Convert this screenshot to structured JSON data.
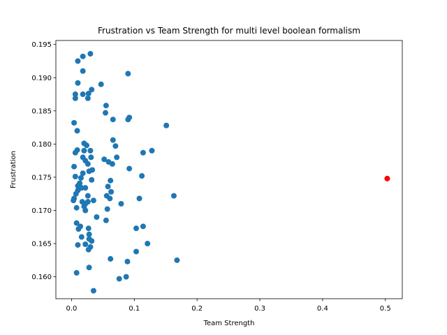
{
  "chart_data": {
    "type": "scatter",
    "title": "Frustration vs Team Strength for multi level boolean formalism",
    "xlabel": "Team Strength",
    "ylabel": "Frustration",
    "xlim": [
      -0.025,
      0.527
    ],
    "ylim": [
      0.1567,
      0.1956
    ],
    "xticks": [
      0.0,
      0.1,
      0.2,
      0.3,
      0.4,
      0.5
    ],
    "xtick_labels": [
      "0.0",
      "0.1",
      "0.2",
      "0.3",
      "0.4",
      "0.5"
    ],
    "yticks": [
      0.16,
      0.165,
      0.17,
      0.175,
      0.18,
      0.185,
      0.19,
      0.195
    ],
    "ytick_labels": [
      "0.160",
      "0.165",
      "0.170",
      "0.175",
      "0.180",
      "0.185",
      "0.190",
      "0.195"
    ],
    "grid": false,
    "series": [
      {
        "color": "#1f77b4",
        "points": [
          [
            0.03,
            0.1936
          ],
          [
            0.018,
            0.1932
          ],
          [
            0.01,
            0.1925
          ],
          [
            0.018,
            0.191
          ],
          [
            0.09,
            0.1906
          ],
          [
            0.01,
            0.1892
          ],
          [
            0.047,
            0.189
          ],
          [
            0.032,
            0.1882
          ],
          [
            0.006,
            0.1875
          ],
          [
            0.018,
            0.1875
          ],
          [
            0.027,
            0.1876
          ],
          [
            0.006,
            0.1869
          ],
          [
            0.026,
            0.1869
          ],
          [
            0.055,
            0.1858
          ],
          [
            0.054,
            0.1847
          ],
          [
            0.092,
            0.184
          ],
          [
            0.09,
            0.1837
          ],
          [
            0.066,
            0.1837
          ],
          [
            0.004,
            0.1832
          ],
          [
            0.151,
            0.1828
          ],
          [
            0.009,
            0.182
          ],
          [
            0.066,
            0.1806
          ],
          [
            0.02,
            0.1801
          ],
          [
            0.024,
            0.1798
          ],
          [
            0.07,
            0.1797
          ],
          [
            0.009,
            0.1791
          ],
          [
            0.03,
            0.179
          ],
          [
            0.02,
            0.179
          ],
          [
            0.128,
            0.179
          ],
          [
            0.006,
            0.1787
          ],
          [
            0.114,
            0.1787
          ],
          [
            0.018,
            0.178
          ],
          [
            0.031,
            0.178
          ],
          [
            0.072,
            0.178
          ],
          [
            0.052,
            0.1777
          ],
          [
            0.022,
            0.1775
          ],
          [
            0.059,
            0.1773
          ],
          [
            0.065,
            0.177
          ],
          [
            0.026,
            0.177
          ],
          [
            0.004,
            0.1766
          ],
          [
            0.092,
            0.1763
          ],
          [
            0.033,
            0.1761
          ],
          [
            0.028,
            0.1759
          ],
          [
            0.018,
            0.1756
          ],
          [
            0.112,
            0.1752
          ],
          [
            0.006,
            0.1751
          ],
          [
            0.015,
            0.1749
          ],
          [
            0.032,
            0.1746
          ],
          [
            0.062,
            0.1745
          ],
          [
            0.013,
            0.1741
          ],
          [
            0.01,
            0.1737
          ],
          [
            0.058,
            0.1736
          ],
          [
            0.016,
            0.1734
          ],
          [
            0.022,
            0.1734
          ],
          [
            0.01,
            0.173
          ],
          [
            0.063,
            0.1728
          ],
          [
            0.007,
            0.1725
          ],
          [
            0.163,
            0.1722
          ],
          [
            0.056,
            0.1722
          ],
          [
            0.026,
            0.1722
          ],
          [
            0.004,
            0.1718
          ],
          [
            0.061,
            0.1718
          ],
          [
            0.108,
            0.1718
          ],
          [
            0.035,
            0.1715
          ],
          [
            0.003,
            0.1715
          ],
          [
            0.017,
            0.1713
          ],
          [
            0.026,
            0.1713
          ],
          [
            0.022,
            0.171
          ],
          [
            0.079,
            0.171
          ],
          [
            0.02,
            0.1706
          ],
          [
            0.008,
            0.1704
          ],
          [
            0.057,
            0.1702
          ],
          [
            0.022,
            0.17
          ],
          [
            0.04,
            0.169
          ],
          [
            0.055,
            0.1685
          ],
          [
            0.008,
            0.1681
          ],
          [
            0.014,
            0.1676
          ],
          [
            0.114,
            0.1676
          ],
          [
            0.103,
            0.1673
          ],
          [
            0.027,
            0.1673
          ],
          [
            0.011,
            0.1672
          ],
          [
            0.028,
            0.1664
          ],
          [
            0.016,
            0.166
          ],
          [
            0.028,
            0.1657
          ],
          [
            0.032,
            0.1654
          ],
          [
            0.121,
            0.165
          ],
          [
            0.022,
            0.1649
          ],
          [
            0.01,
            0.1648
          ],
          [
            0.03,
            0.1645
          ],
          [
            0.027,
            0.1641
          ],
          [
            0.103,
            0.1638
          ],
          [
            0.062,
            0.1627
          ],
          [
            0.168,
            0.1625
          ],
          [
            0.089,
            0.1623
          ],
          [
            0.028,
            0.1614
          ],
          [
            0.008,
            0.1606
          ],
          [
            0.087,
            0.16
          ],
          [
            0.076,
            0.1597
          ],
          [
            0.035,
            0.1579
          ]
        ]
      },
      {
        "color": "#ff0000",
        "points": [
          [
            0.503,
            0.1748
          ]
        ]
      }
    ]
  }
}
